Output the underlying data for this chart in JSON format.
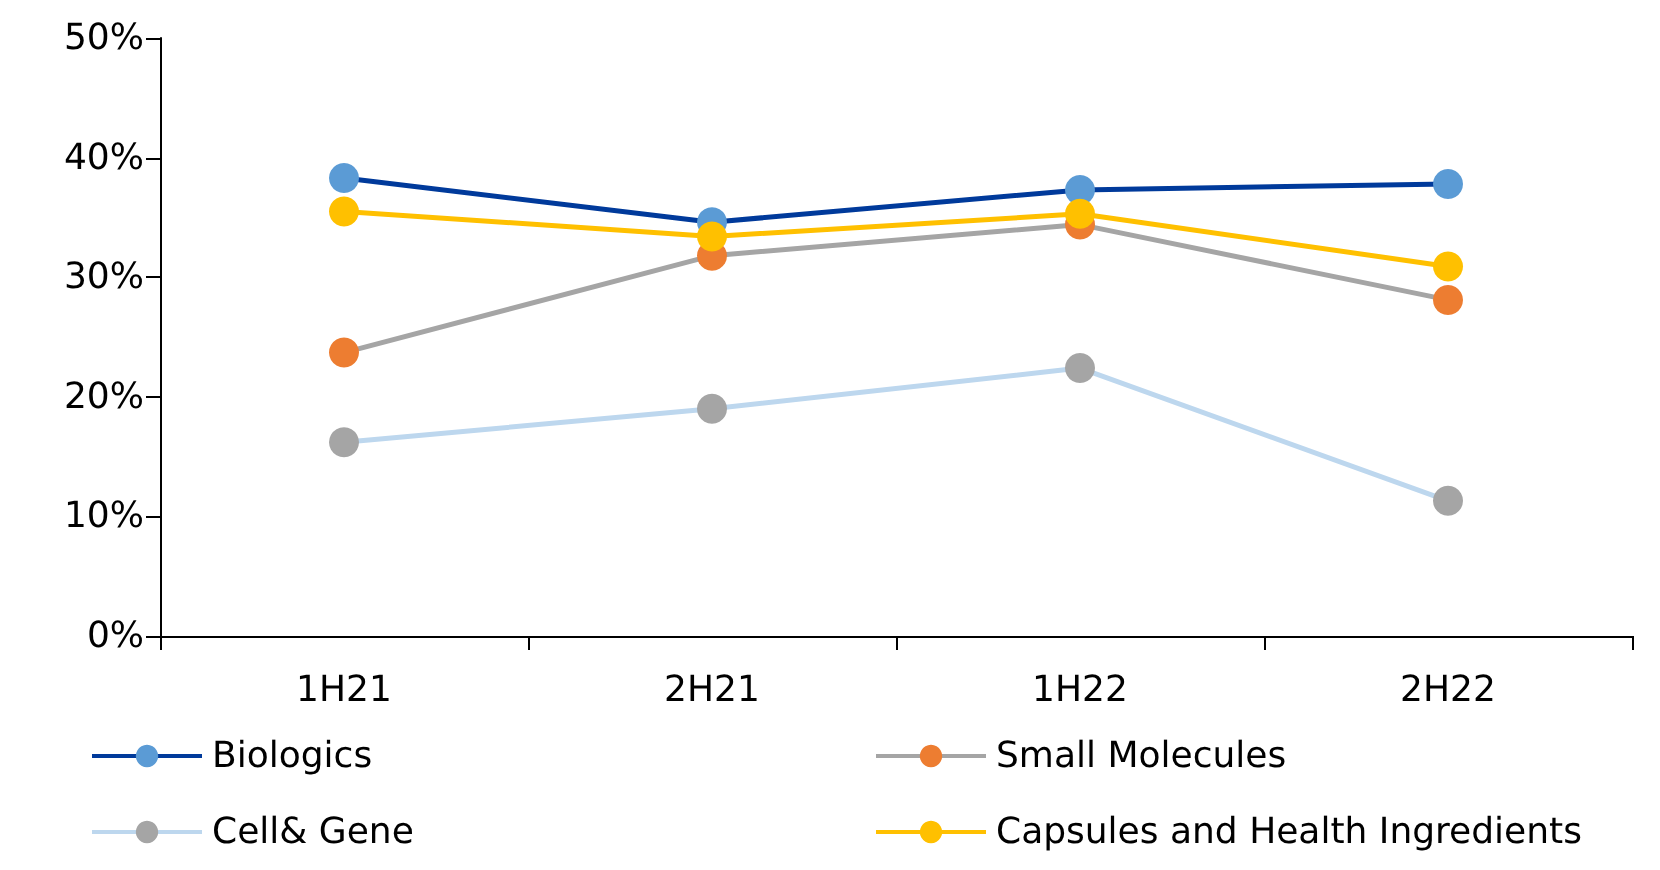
{
  "chart_data": {
    "type": "line",
    "categories": [
      "1H21",
      "2H21",
      "1H22",
      "2H22"
    ],
    "series": [
      {
        "name": "Biologics",
        "color": "#003a9b",
        "colors": [
          "#5b9bd5",
          "#5b9bd5",
          "#5b9bd5",
          "#5b9bd5"
        ],
        "values": [
          38.3,
          34.6,
          37.3,
          37.8
        ]
      },
      {
        "name": "Small Molecules",
        "color": "#a5a5a5",
        "colors": [
          "#ed7d31",
          "#ed7d31",
          "#ed7d31",
          "#ed7d31"
        ],
        "values": [
          23.7,
          31.8,
          34.4,
          28.1
        ]
      },
      {
        "name": "Cell& Gene",
        "color": "#bdd7ee",
        "colors": [
          "#a5a5a5",
          "#a5a5a5",
          "#a5a5a5",
          "#a5a5a5"
        ],
        "values": [
          16.2,
          19.0,
          22.4,
          11.3
        ]
      },
      {
        "name": "Capsules and Health Ingredients",
        "color": "#ffc000",
        "colors": [
          "#ffc000",
          "#ffc000",
          "#ffc000",
          "#ffc000"
        ],
        "values": [
          35.5,
          33.4,
          35.3,
          30.9
        ]
      }
    ],
    "ylim": [
      0,
      50
    ],
    "yticks": [
      {
        "value": 0,
        "label": "0%"
      },
      {
        "value": 10,
        "label": "10%"
      },
      {
        "value": 20,
        "label": "20%"
      },
      {
        "value": 30,
        "label": "30%"
      },
      {
        "value": 40,
        "label": "40%"
      },
      {
        "value": 50,
        "label": "50%"
      }
    ],
    "grid": false,
    "legend": "bottom",
    "marker": "circle",
    "line_style": "solid"
  }
}
